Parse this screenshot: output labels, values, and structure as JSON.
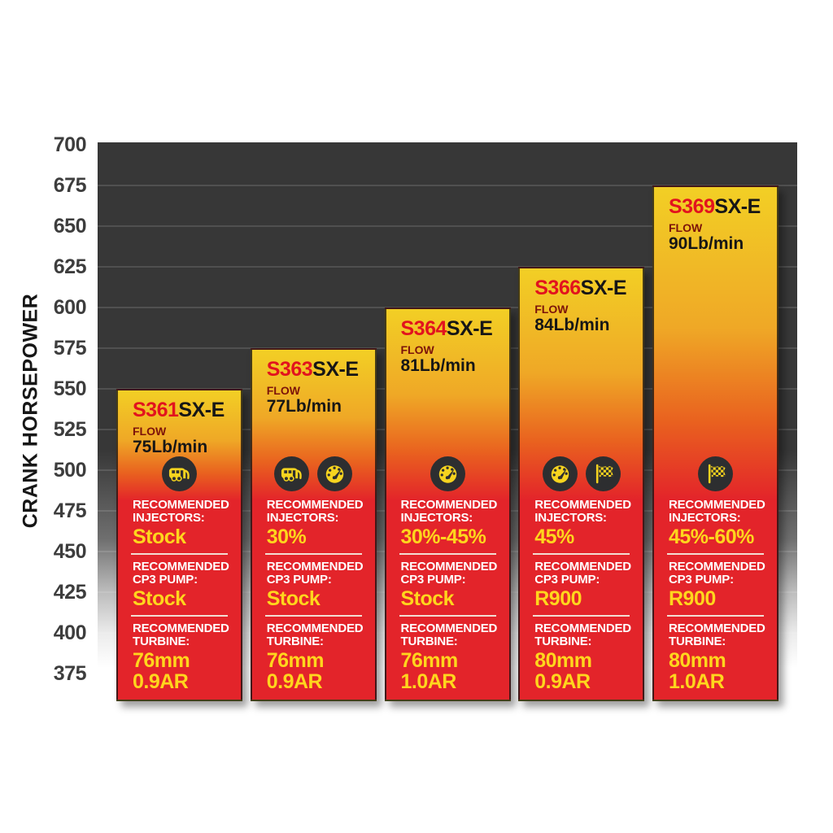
{
  "chart_data": {
    "type": "bar",
    "ylabel": "CRANK HORSEPOWER",
    "ylim": [
      375,
      700
    ],
    "ytick_step": 25,
    "yticks": [
      700,
      675,
      650,
      625,
      600,
      575,
      550,
      525,
      500,
      475,
      450,
      425,
      400,
      375
    ],
    "grid": true,
    "legend": "none",
    "categories": [
      "S361SX-E",
      "S363SX-E",
      "S364SX-E",
      "S366SX-E",
      "S369SX-E"
    ],
    "values": [
      550,
      575,
      600,
      625,
      675
    ],
    "model_suffix": "SX-E",
    "flow_label": "FLOW",
    "section_labels": {
      "injectors": "RECOMMENDED INJECTORS:",
      "cp3_pump": "RECOMMENDED CP3 PUMP:",
      "turbine": "RECOMMENDED TURBINE:"
    },
    "bars": [
      {
        "model": "S361",
        "flow": "75Lb/min",
        "crank_horsepower": 550,
        "icons": [
          "rv-trailer"
        ],
        "injectors": "Stock",
        "cp3_pump": "Stock",
        "turbine": "76mm\n0.9AR"
      },
      {
        "model": "S363",
        "flow": "77Lb/min",
        "crank_horsepower": 575,
        "icons": [
          "rv-trailer",
          "gauge"
        ],
        "injectors": "30%",
        "cp3_pump": "Stock",
        "turbine": "76mm\n0.9AR"
      },
      {
        "model": "S364",
        "flow": "81Lb/min",
        "crank_horsepower": 600,
        "icons": [
          "gauge"
        ],
        "injectors": "30%-45%",
        "cp3_pump": "Stock",
        "turbine": "76mm\n1.0AR"
      },
      {
        "model": "S366",
        "flow": "84Lb/min",
        "crank_horsepower": 625,
        "icons": [
          "gauge",
          "checkered-flag"
        ],
        "injectors": "45%",
        "cp3_pump": "R900",
        "turbine": "80mm\n0.9AR"
      },
      {
        "model": "S369",
        "flow": "90Lb/min",
        "crank_horsepower": 675,
        "icons": [
          "checkered-flag"
        ],
        "injectors": "45%-60%",
        "cp3_pump": "R900",
        "turbine": "80mm\n1.0AR"
      }
    ],
    "colors": {
      "bar_top_yellow": "#f2cf25",
      "bar_mid_orange": "#efa826",
      "bar_red": "#e3242a",
      "model_red": "#e2131e",
      "flow_maroon": "#7c130a",
      "value_yellow": "#ffd61d",
      "label_white": "#ffffff",
      "plot_background": "#373737",
      "icon_circle": "#2d2e30",
      "icon_yellow": "#f6d41f"
    }
  }
}
